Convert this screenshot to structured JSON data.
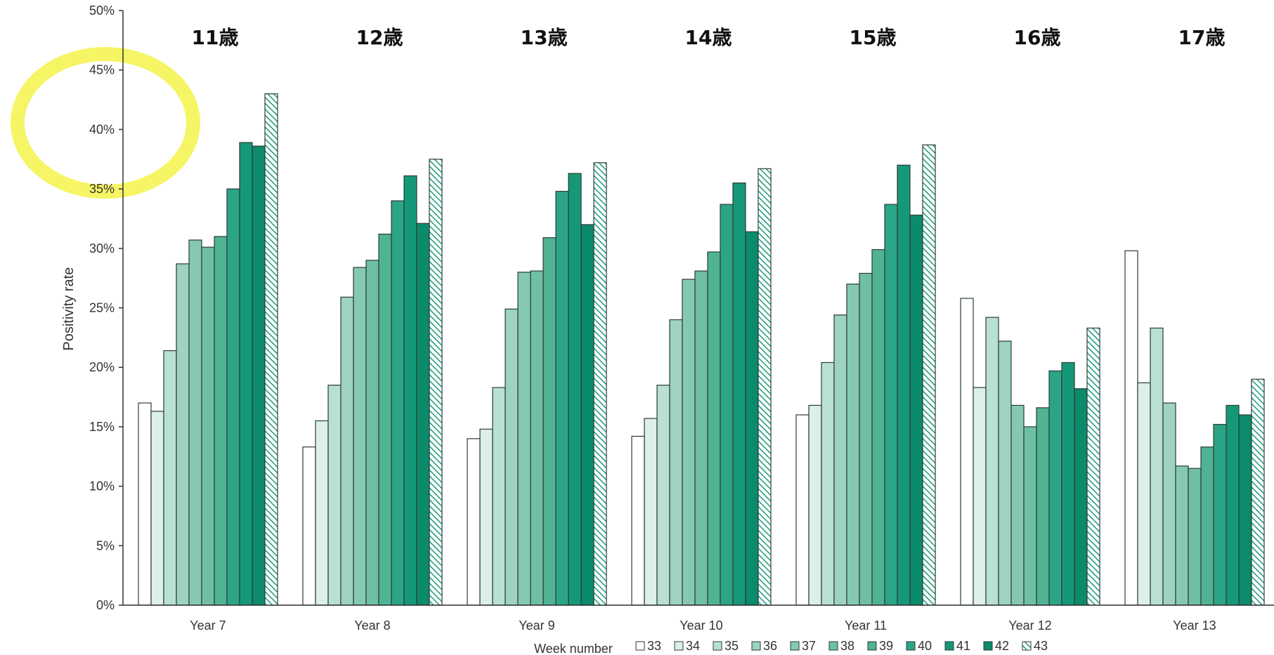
{
  "chart_data": {
    "type": "bar",
    "ylabel": "Positivity rate",
    "xlabel": "",
    "ylim": [
      0,
      50
    ],
    "y_ticks": [
      "0%",
      "5%",
      "10%",
      "15%",
      "20%",
      "25%",
      "30%",
      "35%",
      "40%",
      "45%",
      "50%"
    ],
    "categories": [
      "Year 7",
      "Year 8",
      "Year 9",
      "Year 10",
      "Year 11",
      "Year 12",
      "Year 13"
    ],
    "age_labels": [
      "11歳",
      "12歳",
      "13歳",
      "14歳",
      "15歳",
      "16歳",
      "17歳"
    ],
    "legend_title": "Week number",
    "legend_placement": "bottom",
    "grid": false,
    "series": [
      {
        "name": "33",
        "color": "#ffffff",
        "values": [
          17.0,
          13.3,
          14.0,
          14.2,
          16.0,
          25.8,
          29.8
        ]
      },
      {
        "name": "34",
        "color": "#dcefe8",
        "values": [
          16.3,
          15.5,
          14.8,
          15.7,
          16.8,
          18.3,
          18.7
        ]
      },
      {
        "name": "35",
        "color": "#b8e0d3",
        "values": [
          21.4,
          18.5,
          18.3,
          18.5,
          20.4,
          24.2,
          23.3
        ]
      },
      {
        "name": "36",
        "color": "#9dd3c0",
        "values": [
          28.7,
          25.9,
          24.9,
          24.0,
          24.4,
          22.2,
          17.0
        ]
      },
      {
        "name": "37",
        "color": "#86c9b3",
        "values": [
          30.7,
          28.4,
          28.0,
          27.4,
          27.0,
          16.8,
          11.7
        ]
      },
      {
        "name": "38",
        "color": "#6fbfa5",
        "values": [
          30.1,
          29.0,
          28.1,
          28.1,
          27.9,
          15.0,
          11.5
        ]
      },
      {
        "name": "39",
        "color": "#4fb394",
        "values": [
          31.0,
          31.2,
          30.9,
          29.7,
          29.9,
          16.6,
          13.3
        ]
      },
      {
        "name": "40",
        "color": "#2ba585",
        "values": [
          35.0,
          34.0,
          34.8,
          33.7,
          33.7,
          19.7,
          15.2
        ]
      },
      {
        "name": "41",
        "color": "#159879",
        "values": [
          38.9,
          36.1,
          36.3,
          35.5,
          37.0,
          20.4,
          16.8
        ]
      },
      {
        "name": "42",
        "color": "#0b8a6c",
        "values": [
          38.6,
          32.1,
          32.0,
          31.4,
          32.8,
          18.2,
          16.0
        ]
      },
      {
        "name": "43",
        "color": "#1a9a7c",
        "pattern": "hatched",
        "values": [
          43.0,
          37.5,
          37.2,
          36.7,
          38.7,
          23.3,
          19.0
        ]
      }
    ]
  }
}
